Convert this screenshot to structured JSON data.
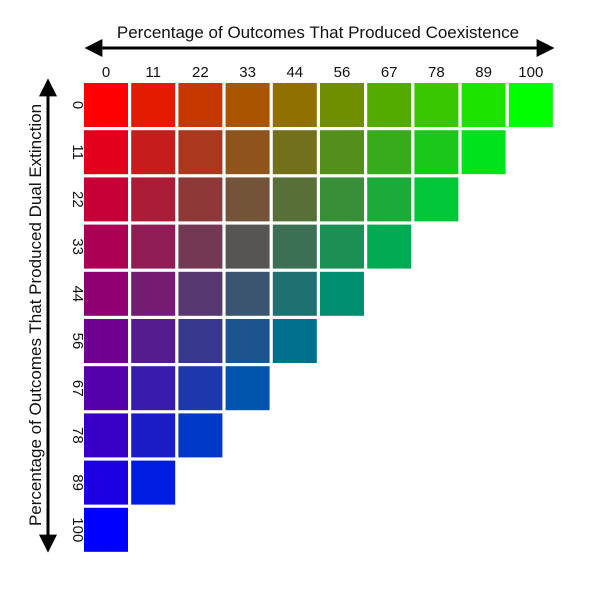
{
  "chart_data": {
    "type": "heatmap",
    "title": "",
    "xlabel": "Percentage of Outcomes That Produced Coexistence",
    "ylabel": "Percentage of Outcomes That Produced Dual Extinction",
    "x_ticks": [
      "0",
      "11",
      "22",
      "33",
      "44",
      "56",
      "67",
      "78",
      "89",
      "100"
    ],
    "y_ticks": [
      "0",
      "11",
      "22",
      "33",
      "44",
      "56",
      "67",
      "78",
      "89",
      "100"
    ],
    "x_values": [
      0,
      11,
      22,
      33,
      44,
      56,
      67,
      78,
      89,
      100
    ],
    "y_values": [
      0,
      11,
      22,
      33,
      44,
      56,
      67,
      78,
      89,
      100
    ],
    "color_encoding": {
      "red": "100 - coexistence - dual_extinction",
      "green": "coexistence",
      "blue": "dual_extinction"
    },
    "cells": "triangular grid: every (coexistence, dual_extinction) pair whose sum is at most 100",
    "colors": {
      "axis": "#000000",
      "grid_gap": "#ffffff"
    }
  }
}
